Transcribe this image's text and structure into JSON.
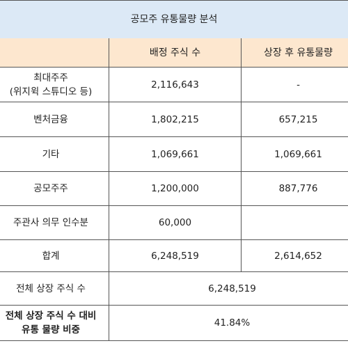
{
  "title": "공모주 유통물량 분석",
  "header": {
    "col1": "",
    "col2": "배정 주식 수",
    "col3": "상장 후 유통물량"
  },
  "rows": [
    {
      "label_line1": "최대주주",
      "label_line2": "(위지윅 스튜디오 등)",
      "allotted": "2,116,643",
      "floating": "-"
    },
    {
      "label": "벤처금융",
      "allotted": "1,802,215",
      "floating": "657,215"
    },
    {
      "label": "기타",
      "allotted": "1,069,661",
      "floating": "1,069,661"
    },
    {
      "label": "공모주주",
      "allotted": "1,200,000",
      "floating": "887,776"
    },
    {
      "label": "주관사 의무 인수분",
      "allotted": "60,000",
      "floating": ""
    },
    {
      "label": "합계",
      "allotted": "6,248,519",
      "floating": "2,614,652"
    }
  ],
  "total_listed": {
    "label": "전체 상장 주식 수",
    "value": "6,248,519"
  },
  "ratio": {
    "label_line1": "전체 상장 주식 수 대비",
    "label_line2": "유통 물량 비중",
    "value": "41.84%"
  }
}
